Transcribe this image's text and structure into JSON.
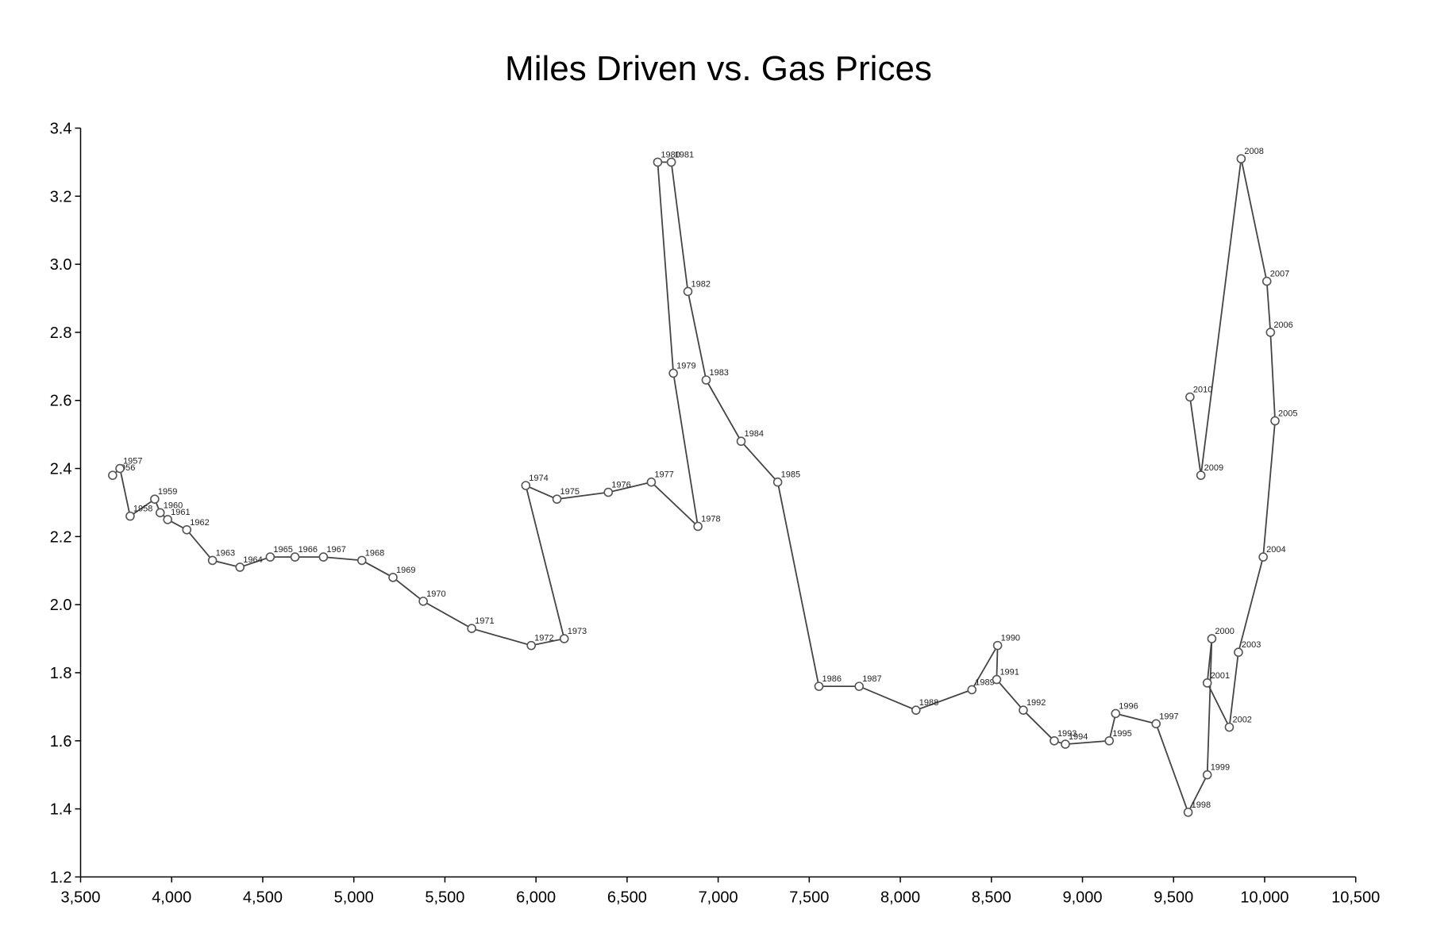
{
  "chart_data": {
    "type": "line",
    "title": "Miles Driven vs. Gas Prices",
    "xlabel": "",
    "ylabel": "",
    "xlim": [
      3500,
      10500
    ],
    "ylim": [
      1.2,
      3.4
    ],
    "x_ticks": [
      "3,500",
      "4,000",
      "4,500",
      "5,000",
      "5,500",
      "6,000",
      "6,500",
      "7,000",
      "7,500",
      "8,000",
      "8,500",
      "9,000",
      "9,500",
      "10,000",
      "10,500"
    ],
    "y_ticks": [
      "1.2",
      "1.4",
      "1.6",
      "1.8",
      "2.0",
      "2.2",
      "2.4",
      "2.6",
      "2.8",
      "3.0",
      "3.2",
      "3.4"
    ],
    "grid": false,
    "line_color": "#444444",
    "marker": "open-circle",
    "points": [
      {
        "label": "1956",
        "x": 3676,
        "y": 2.38
      },
      {
        "label": "1957",
        "x": 3716,
        "y": 2.4
      },
      {
        "label": "1958",
        "x": 3772,
        "y": 2.26
      },
      {
        "label": "1959",
        "x": 3907,
        "y": 2.31
      },
      {
        "label": "1960",
        "x": 3937,
        "y": 2.27
      },
      {
        "label": "1961",
        "x": 3978,
        "y": 2.25
      },
      {
        "label": "1962",
        "x": 4083,
        "y": 2.22
      },
      {
        "label": "1963",
        "x": 4224,
        "y": 2.13
      },
      {
        "label": "1964",
        "x": 4375,
        "y": 2.11
      },
      {
        "label": "1965",
        "x": 4541,
        "y": 2.14
      },
      {
        "label": "1966",
        "x": 4677,
        "y": 2.14
      },
      {
        "label": "1967",
        "x": 4833,
        "y": 2.14
      },
      {
        "label": "1968",
        "x": 5044,
        "y": 2.13
      },
      {
        "label": "1969",
        "x": 5215,
        "y": 2.08
      },
      {
        "label": "1970",
        "x": 5381,
        "y": 2.01
      },
      {
        "label": "1971",
        "x": 5647,
        "y": 1.93
      },
      {
        "label": "1972",
        "x": 5974,
        "y": 1.88
      },
      {
        "label": "1973",
        "x": 6155,
        "y": 1.9
      },
      {
        "label": "1974",
        "x": 5944,
        "y": 2.35
      },
      {
        "label": "1975",
        "x": 6115,
        "y": 2.31
      },
      {
        "label": "1976",
        "x": 6397,
        "y": 2.33
      },
      {
        "label": "1977",
        "x": 6633,
        "y": 2.36
      },
      {
        "label": "1978",
        "x": 6889,
        "y": 2.23
      },
      {
        "label": "1979",
        "x": 6754,
        "y": 2.68
      },
      {
        "label": "1980",
        "x": 6668,
        "y": 3.3
      },
      {
        "label": "1981",
        "x": 6743,
        "y": 3.3
      },
      {
        "label": "1982",
        "x": 6834,
        "y": 2.92
      },
      {
        "label": "1983",
        "x": 6934,
        "y": 2.66
      },
      {
        "label": "1984",
        "x": 7126,
        "y": 2.48
      },
      {
        "label": "1985",
        "x": 7327,
        "y": 2.36
      },
      {
        "label": "1986",
        "x": 7553,
        "y": 1.76
      },
      {
        "label": "1987",
        "x": 7774,
        "y": 1.76
      },
      {
        "label": "1988",
        "x": 8086,
        "y": 1.69
      },
      {
        "label": "1989",
        "x": 8393,
        "y": 1.75
      },
      {
        "label": "1990",
        "x": 8534,
        "y": 1.88
      },
      {
        "label": "1991",
        "x": 8529,
        "y": 1.78
      },
      {
        "label": "1992",
        "x": 8675,
        "y": 1.69
      },
      {
        "label": "1993",
        "x": 8845,
        "y": 1.6
      },
      {
        "label": "1994",
        "x": 8906,
        "y": 1.59
      },
      {
        "label": "1995",
        "x": 9147,
        "y": 1.6
      },
      {
        "label": "1996",
        "x": 9182,
        "y": 1.68
      },
      {
        "label": "1997",
        "x": 9404,
        "y": 1.65
      },
      {
        "label": "1998",
        "x": 9580,
        "y": 1.39
      },
      {
        "label": "1999",
        "x": 9685,
        "y": 1.5
      },
      {
        "label": "2000",
        "x": 9710,
        "y": 1.9
      },
      {
        "label": "2001",
        "x": 9685,
        "y": 1.77
      },
      {
        "label": "2002",
        "x": 9806,
        "y": 1.64
      },
      {
        "label": "2003",
        "x": 9856,
        "y": 1.86
      },
      {
        "label": "2004",
        "x": 9992,
        "y": 2.14
      },
      {
        "label": "2005",
        "x": 10057,
        "y": 2.54
      },
      {
        "label": "2006",
        "x": 10032,
        "y": 2.8
      },
      {
        "label": "2007",
        "x": 10012,
        "y": 2.95
      },
      {
        "label": "2008",
        "x": 9871,
        "y": 3.31
      },
      {
        "label": "2009",
        "x": 9650,
        "y": 2.38
      },
      {
        "label": "2010",
        "x": 9590,
        "y": 2.61
      }
    ]
  }
}
